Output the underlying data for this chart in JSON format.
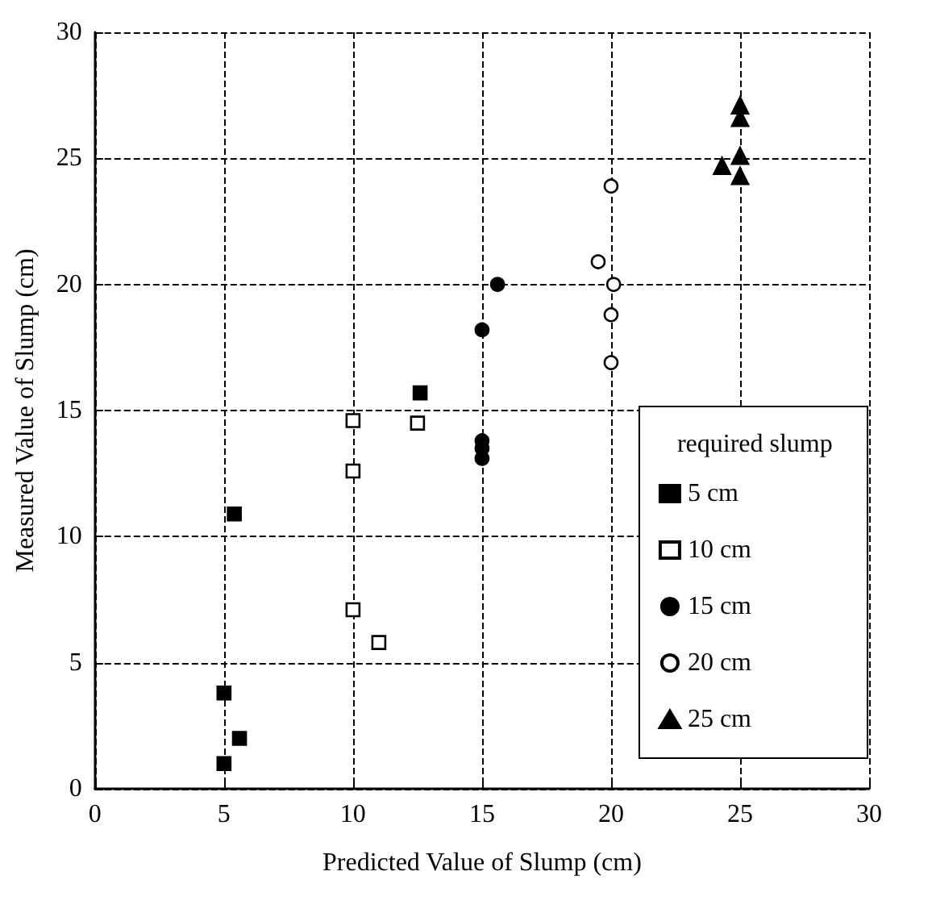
{
  "chart_data": {
    "type": "scatter",
    "xlabel": "Predicted Value of Slump (cm)",
    "ylabel": "Measured Value of Slump (cm)",
    "legend_title": "required slump",
    "legend": "bottom right",
    "grid": true,
    "line_style": "dashed",
    "xlim": [
      0,
      30
    ],
    "xticks": [
      0,
      5,
      10,
      15,
      20,
      25,
      30
    ],
    "ylim": [
      0,
      30
    ],
    "yticks": [
      0,
      5,
      10,
      15,
      20,
      25,
      30
    ],
    "series": [
      {
        "name": "5 cm",
        "color": "#000000",
        "marker": "square",
        "x": [
          5,
          5,
          5.6,
          5.4,
          12.6
        ],
        "values": [
          1.0,
          3.8,
          2.0,
          10.9,
          15.7
        ]
      },
      {
        "name": "10 cm",
        "color": "#ffffff",
        "marker": "square",
        "x": [
          10,
          11,
          10,
          10,
          12.5
        ],
        "values": [
          7.1,
          5.8,
          12.6,
          14.6,
          14.5
        ]
      },
      {
        "name": "15 cm",
        "color": "#000000",
        "marker": "circle",
        "x": [
          15,
          15,
          15,
          15,
          15.6
        ],
        "values": [
          13.8,
          13.5,
          13.1,
          18.2,
          20.0
        ]
      },
      {
        "name": "20 cm",
        "color": "#ffffff",
        "marker": "circle",
        "x": [
          20,
          20,
          20.1,
          19.5,
          20
        ],
        "values": [
          16.9,
          18.8,
          20.0,
          20.9,
          23.9
        ]
      },
      {
        "name": "25 cm",
        "color": "#000000",
        "marker": "triangle",
        "x": [
          24.3,
          25,
          25,
          25,
          25
        ],
        "values": [
          24.7,
          24.3,
          25.1,
          26.6,
          27.1
        ]
      }
    ]
  }
}
